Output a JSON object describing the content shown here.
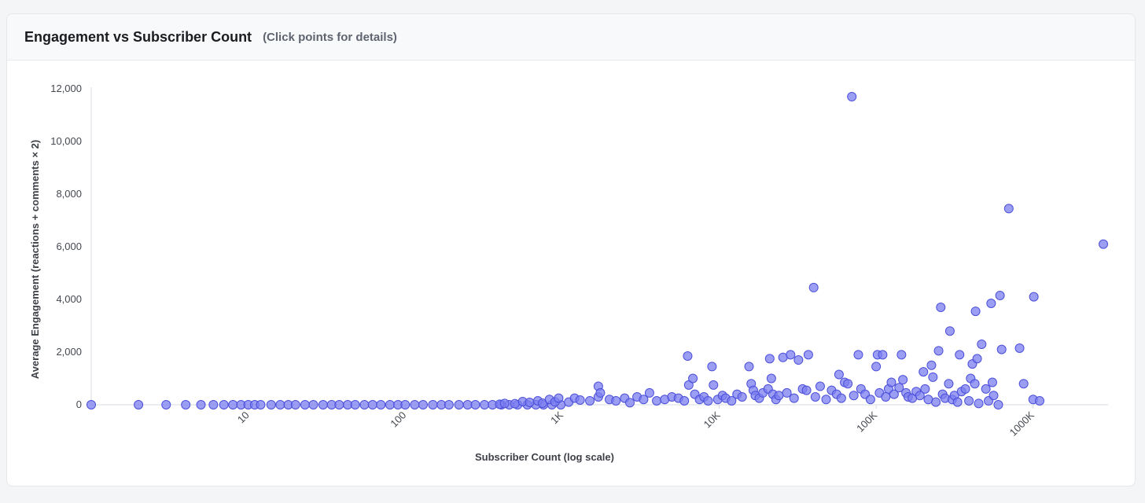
{
  "header": {
    "title": "Engagement vs Subscriber Count",
    "subtitle": "(Click points for details)"
  },
  "colors": {
    "point_fill": "#7b7ef0",
    "point_stroke": "#4b4fd9",
    "axis": "#d9dbe0"
  },
  "chart_data": {
    "type": "scatter",
    "title": "",
    "xlabel": "Subscriber Count (log scale)",
    "ylabel": "Average Engagement (reactions + comments × 2)",
    "xscale": "log",
    "xlim": [
      1,
      3000000
    ],
    "ylim": [
      0,
      12000
    ],
    "grid": false,
    "x_ticks": [
      {
        "value": 10,
        "label": "10"
      },
      {
        "value": 100,
        "label": "100"
      },
      {
        "value": 1000,
        "label": "1K"
      },
      {
        "value": 10000,
        "label": "10K"
      },
      {
        "value": 100000,
        "label": "100K"
      },
      {
        "value": 1000000,
        "label": "1000K"
      }
    ],
    "y_ticks": [
      {
        "value": 0,
        "label": "0"
      },
      {
        "value": 2000,
        "label": "2,000"
      },
      {
        "value": 4000,
        "label": "4,000"
      },
      {
        "value": 6000,
        "label": "6,000"
      },
      {
        "value": 8000,
        "label": "8,000"
      },
      {
        "value": 10000,
        "label": "10,000"
      },
      {
        "value": 12000,
        "label": "12,000"
      }
    ],
    "points": [
      [
        1,
        0
      ],
      [
        2,
        0
      ],
      [
        3,
        0
      ],
      [
        4,
        0
      ],
      [
        5,
        0
      ],
      [
        6,
        0
      ],
      [
        7,
        0
      ],
      [
        8,
        0
      ],
      [
        9,
        0
      ],
      [
        10,
        0
      ],
      [
        11,
        0
      ],
      [
        12,
        0
      ],
      [
        14,
        0
      ],
      [
        16,
        0
      ],
      [
        18,
        0
      ],
      [
        20,
        0
      ],
      [
        23,
        0
      ],
      [
        26,
        0
      ],
      [
        30,
        0
      ],
      [
        34,
        0
      ],
      [
        38,
        0
      ],
      [
        43,
        0
      ],
      [
        48,
        0
      ],
      [
        55,
        0
      ],
      [
        62,
        0
      ],
      [
        70,
        0
      ],
      [
        80,
        0
      ],
      [
        90,
        0
      ],
      [
        100,
        0
      ],
      [
        115,
        0
      ],
      [
        130,
        0
      ],
      [
        150,
        0
      ],
      [
        170,
        0
      ],
      [
        190,
        0
      ],
      [
        220,
        0
      ],
      [
        250,
        0
      ],
      [
        280,
        0
      ],
      [
        320,
        0
      ],
      [
        360,
        0
      ],
      [
        410,
        0
      ],
      [
        460,
        0
      ],
      [
        520,
        0
      ],
      [
        600,
        0
      ],
      [
        680,
        0
      ],
      [
        760,
        0
      ],
      [
        860,
        0
      ],
      [
        980,
        0
      ],
      [
        400,
        20
      ],
      [
        430,
        50
      ],
      [
        500,
        40
      ],
      [
        560,
        120
      ],
      [
        620,
        90
      ],
      [
        700,
        150
      ],
      [
        750,
        60
      ],
      [
        830,
        200
      ],
      [
        900,
        110
      ],
      [
        950,
        250
      ],
      [
        1100,
        100
      ],
      [
        1200,
        250
      ],
      [
        1300,
        180
      ],
      [
        1500,
        150
      ],
      [
        1700,
        300
      ],
      [
        1700,
        700
      ],
      [
        1750,
        450
      ],
      [
        2000,
        200
      ],
      [
        2200,
        150
      ],
      [
        2500,
        250
      ],
      [
        2700,
        80
      ],
      [
        3000,
        300
      ],
      [
        3300,
        200
      ],
      [
        3600,
        450
      ],
      [
        4000,
        150
      ],
      [
        4500,
        200
      ],
      [
        5000,
        300
      ],
      [
        5500,
        250
      ],
      [
        6000,
        150
      ],
      [
        6300,
        1850
      ],
      [
        6400,
        750
      ],
      [
        6800,
        1000
      ],
      [
        7000,
        400
      ],
      [
        7500,
        200
      ],
      [
        8000,
        300
      ],
      [
        8500,
        150
      ],
      [
        9000,
        1450
      ],
      [
        9200,
        750
      ],
      [
        9800,
        200
      ],
      [
        10500,
        350
      ],
      [
        11000,
        250
      ],
      [
        12000,
        150
      ],
      [
        13000,
        400
      ],
      [
        14000,
        300
      ],
      [
        15500,
        1450
      ],
      [
        16000,
        800
      ],
      [
        16500,
        550
      ],
      [
        17000,
        350
      ],
      [
        18000,
        250
      ],
      [
        19000,
        450
      ],
      [
        20500,
        600
      ],
      [
        21000,
        1750
      ],
      [
        21500,
        1000
      ],
      [
        22000,
        400
      ],
      [
        23000,
        200
      ],
      [
        24000,
        350
      ],
      [
        25500,
        1800
      ],
      [
        27000,
        450
      ],
      [
        28500,
        1900
      ],
      [
        30000,
        250
      ],
      [
        32000,
        1700
      ],
      [
        34000,
        600
      ],
      [
        36000,
        550
      ],
      [
        37000,
        1900
      ],
      [
        40000,
        4450
      ],
      [
        41000,
        300
      ],
      [
        44000,
        700
      ],
      [
        48000,
        200
      ],
      [
        52000,
        550
      ],
      [
        56000,
        400
      ],
      [
        58000,
        1150
      ],
      [
        60000,
        250
      ],
      [
        63000,
        850
      ],
      [
        66000,
        800
      ],
      [
        70000,
        11700
      ],
      [
        72000,
        350
      ],
      [
        77000,
        1900
      ],
      [
        80000,
        600
      ],
      [
        85000,
        400
      ],
      [
        92000,
        200
      ],
      [
        100000,
        1450
      ],
      [
        102000,
        1900
      ],
      [
        105000,
        450
      ],
      [
        110000,
        1900
      ],
      [
        115000,
        300
      ],
      [
        120000,
        600
      ],
      [
        125000,
        850
      ],
      [
        130000,
        400
      ],
      [
        140000,
        650
      ],
      [
        145000,
        1900
      ],
      [
        148000,
        950
      ],
      [
        155000,
        450
      ],
      [
        160000,
        300
      ],
      [
        170000,
        250
      ],
      [
        180000,
        500
      ],
      [
        190000,
        350
      ],
      [
        200000,
        1250
      ],
      [
        205000,
        600
      ],
      [
        215000,
        200
      ],
      [
        225000,
        1500
      ],
      [
        230000,
        1050
      ],
      [
        240000,
        100
      ],
      [
        250000,
        2050
      ],
      [
        258000,
        3700
      ],
      [
        265000,
        400
      ],
      [
        275000,
        250
      ],
      [
        290000,
        800
      ],
      [
        295000,
        2800
      ],
      [
        305000,
        200
      ],
      [
        315000,
        350
      ],
      [
        330000,
        100
      ],
      [
        340000,
        1900
      ],
      [
        350000,
        500
      ],
      [
        370000,
        600
      ],
      [
        390000,
        150
      ],
      [
        400000,
        1000
      ],
      [
        410000,
        1550
      ],
      [
        425000,
        800
      ],
      [
        430000,
        3550
      ],
      [
        440000,
        1750
      ],
      [
        450000,
        50
      ],
      [
        470000,
        2300
      ],
      [
        500000,
        600
      ],
      [
        520000,
        150
      ],
      [
        540000,
        3850
      ],
      [
        550000,
        850
      ],
      [
        560000,
        350
      ],
      [
        600000,
        0
      ],
      [
        615000,
        4150
      ],
      [
        630000,
        2100
      ],
      [
        700000,
        7450
      ],
      [
        820000,
        2150
      ],
      [
        870000,
        800
      ],
      [
        1000000,
        200
      ],
      [
        1010000,
        4100
      ],
      [
        1100000,
        150
      ],
      [
        2800000,
        6100
      ]
    ]
  }
}
